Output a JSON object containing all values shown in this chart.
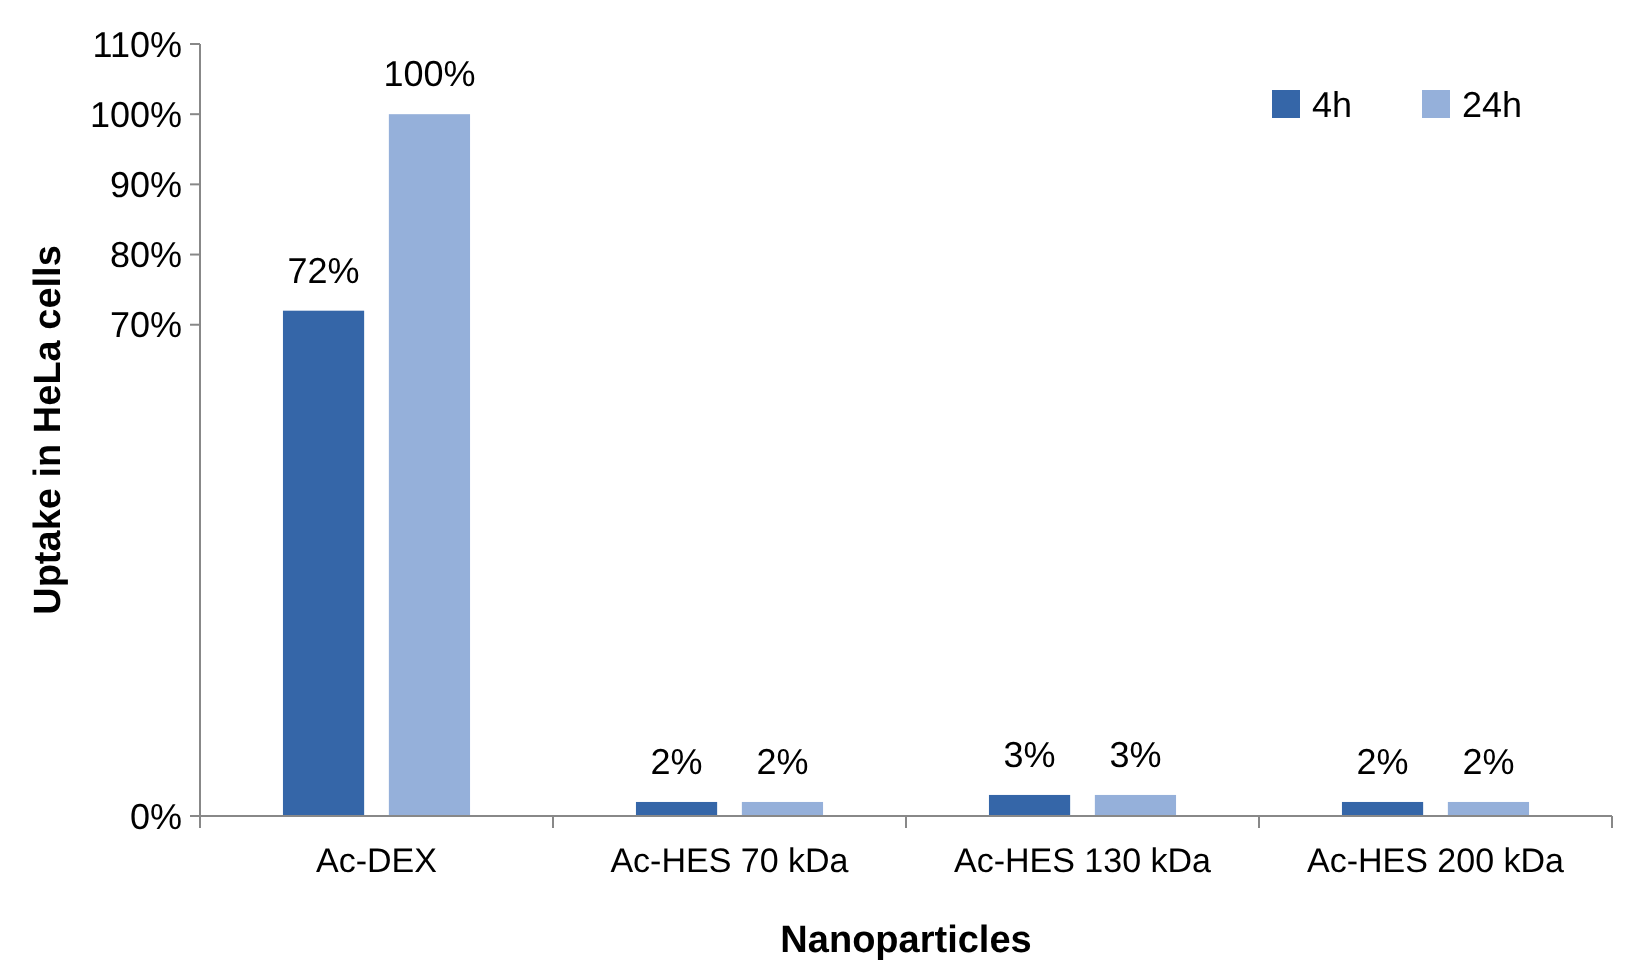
{
  "chart_data": {
    "type": "bar",
    "xlabel": "Nanoparticles",
    "ylabel": "Uptake in HeLa cells",
    "categories": [
      "Ac-DEX",
      "Ac-HES 70 kDa",
      "Ac-HES 130 kDa",
      "Ac-HES 200 kDa"
    ],
    "series": [
      {
        "name": "4h",
        "color": "#3566a8",
        "values": [
          72,
          2,
          3,
          2
        ],
        "value_labels": [
          "72%",
          "2%",
          "3%",
          "2%"
        ]
      },
      {
        "name": "24h",
        "color": "#95b0da",
        "values": [
          100,
          2,
          3,
          2
        ],
        "value_labels": [
          "100%",
          "2%",
          "3%",
          "2%"
        ]
      }
    ],
    "ylim": [
      0,
      110
    ],
    "yticks": [
      {
        "value": 0,
        "label": "0%"
      },
      {
        "value": 70,
        "label": "70%"
      },
      {
        "value": 80,
        "label": "80%"
      },
      {
        "value": 90,
        "label": "90%"
      },
      {
        "value": 100,
        "label": "100%"
      },
      {
        "value": 110,
        "label": "110%"
      }
    ],
    "legend": "top right",
    "grid": false
  }
}
